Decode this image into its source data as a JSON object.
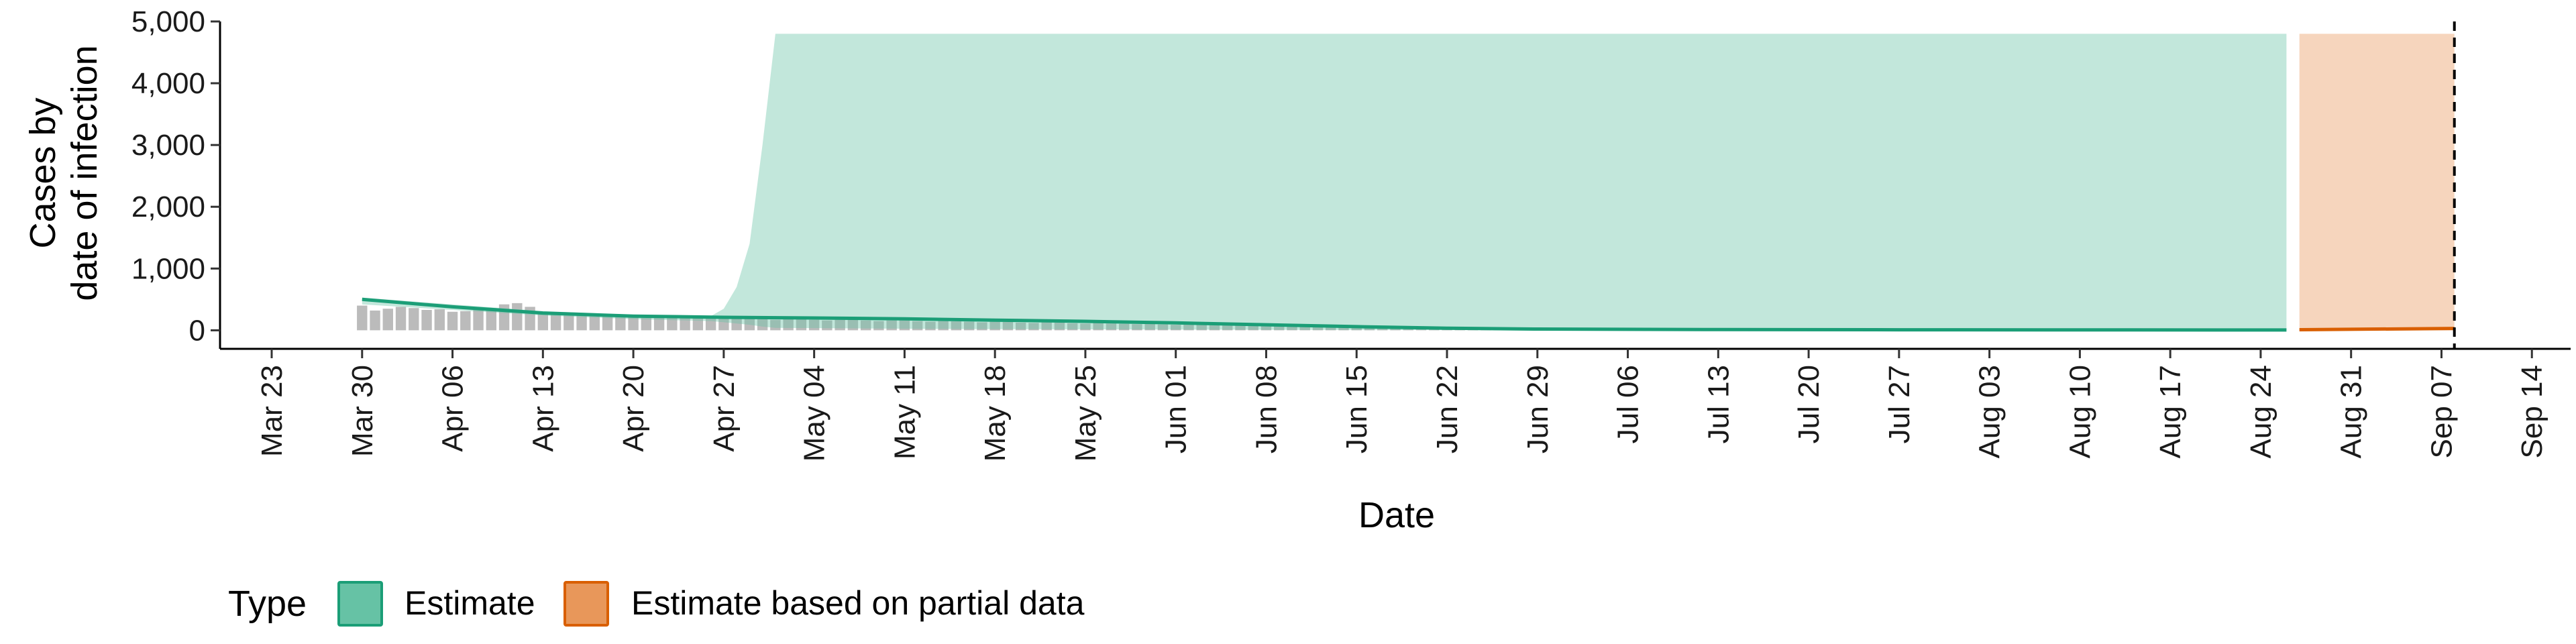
{
  "chart_data": {
    "type": "area",
    "xlabel": "Date",
    "ylabel_line1": "Cases by",
    "ylabel_line2": "date of infection",
    "x_range": [
      "2020-03-19",
      "2020-09-17"
    ],
    "ylim": [
      -300,
      5000
    ],
    "y_ticks": [
      {
        "value": 0,
        "label": "0"
      },
      {
        "value": 1000,
        "label": "1,000"
      },
      {
        "value": 2000,
        "label": "2,000"
      },
      {
        "value": 3000,
        "label": "3,000"
      },
      {
        "value": 4000,
        "label": "4,000"
      },
      {
        "value": 5000,
        "label": "5,000"
      }
    ],
    "x_ticks": [
      {
        "date": "2020-03-23",
        "label": "Mar 23"
      },
      {
        "date": "2020-03-30",
        "label": "Mar 30"
      },
      {
        "date": "2020-04-06",
        "label": "Apr 06"
      },
      {
        "date": "2020-04-13",
        "label": "Apr 13"
      },
      {
        "date": "2020-04-20",
        "label": "Apr 20"
      },
      {
        "date": "2020-04-27",
        "label": "Apr 27"
      },
      {
        "date": "2020-05-04",
        "label": "May 04"
      },
      {
        "date": "2020-05-11",
        "label": "May 11"
      },
      {
        "date": "2020-05-18",
        "label": "May 18"
      },
      {
        "date": "2020-05-25",
        "label": "May 25"
      },
      {
        "date": "2020-06-01",
        "label": "Jun 01"
      },
      {
        "date": "2020-06-08",
        "label": "Jun 08"
      },
      {
        "date": "2020-06-15",
        "label": "Jun 15"
      },
      {
        "date": "2020-06-22",
        "label": "Jun 22"
      },
      {
        "date": "2020-06-29",
        "label": "Jun 29"
      },
      {
        "date": "2020-07-06",
        "label": "Jul 06"
      },
      {
        "date": "2020-07-13",
        "label": "Jul 13"
      },
      {
        "date": "2020-07-20",
        "label": "Jul 20"
      },
      {
        "date": "2020-07-27",
        "label": "Jul 27"
      },
      {
        "date": "2020-08-03",
        "label": "Aug 03"
      },
      {
        "date": "2020-08-10",
        "label": "Aug 10"
      },
      {
        "date": "2020-08-17",
        "label": "Aug 17"
      },
      {
        "date": "2020-08-24",
        "label": "Aug 24"
      },
      {
        "date": "2020-08-31",
        "label": "Aug 31"
      },
      {
        "date": "2020-09-07",
        "label": "Sep 07"
      },
      {
        "date": "2020-09-14",
        "label": "Sep 14"
      }
    ],
    "vline_date": "2020-09-08",
    "legend": {
      "title": "Type",
      "position": "bottom",
      "items": [
        {
          "label": "Estimate",
          "fill": "#66c2a5",
          "stroke": "#1b9e77"
        },
        {
          "label": "Estimate based on partial data",
          "fill": "#e8975a",
          "stroke": "#d95f02"
        }
      ]
    },
    "series": [
      {
        "name": "Estimate",
        "color": "#1b9e77",
        "fill": "#66c2a5",
        "fill_opacity": 0.4,
        "ribbon": [
          {
            "date": "2020-03-30",
            "lower": 420,
            "upper": 530
          },
          {
            "date": "2020-04-06",
            "lower": 330,
            "upper": 420
          },
          {
            "date": "2020-04-13",
            "lower": 240,
            "upper": 310
          },
          {
            "date": "2020-04-20",
            "lower": 180,
            "upper": 250
          },
          {
            "date": "2020-04-26",
            "lower": 150,
            "upper": 230
          },
          {
            "date": "2020-04-27",
            "lower": 130,
            "upper": 350
          },
          {
            "date": "2020-04-28",
            "lower": 110,
            "upper": 700
          },
          {
            "date": "2020-04-29",
            "lower": 90,
            "upper": 1400
          },
          {
            "date": "2020-04-30",
            "lower": 60,
            "upper": 3000
          },
          {
            "date": "2020-05-01",
            "lower": 40,
            "upper": 4800
          },
          {
            "date": "2020-05-15",
            "lower": 20,
            "upper": 4800
          },
          {
            "date": "2020-06-15",
            "lower": 5,
            "upper": 4800
          },
          {
            "date": "2020-07-15",
            "lower": 0,
            "upper": 4800
          },
          {
            "date": "2020-08-26",
            "lower": 0,
            "upper": 4800
          }
        ],
        "median": [
          {
            "date": "2020-03-30",
            "value": 500
          },
          {
            "date": "2020-04-06",
            "value": 380
          },
          {
            "date": "2020-04-13",
            "value": 280
          },
          {
            "date": "2020-04-20",
            "value": 230
          },
          {
            "date": "2020-04-27",
            "value": 210
          },
          {
            "date": "2020-05-04",
            "value": 200
          },
          {
            "date": "2020-05-11",
            "value": 185
          },
          {
            "date": "2020-05-18",
            "value": 165
          },
          {
            "date": "2020-05-25",
            "value": 145
          },
          {
            "date": "2020-06-01",
            "value": 120
          },
          {
            "date": "2020-06-08",
            "value": 90
          },
          {
            "date": "2020-06-15",
            "value": 60
          },
          {
            "date": "2020-06-22",
            "value": 35
          },
          {
            "date": "2020-06-29",
            "value": 20
          },
          {
            "date": "2020-07-13",
            "value": 12
          },
          {
            "date": "2020-07-27",
            "value": 8
          },
          {
            "date": "2020-08-26",
            "value": 5
          }
        ]
      },
      {
        "name": "Estimate based on partial data",
        "color": "#d95f02",
        "fill": "#e8975a",
        "fill_opacity": 0.4,
        "ribbon": [
          {
            "date": "2020-08-27",
            "lower": 0,
            "upper": 4800
          },
          {
            "date": "2020-09-08",
            "lower": 0,
            "upper": 4800
          }
        ],
        "median": [
          {
            "date": "2020-08-27",
            "value": 10
          },
          {
            "date": "2020-09-08",
            "value": 30
          }
        ]
      }
    ],
    "reported_cases": {
      "color": "#9e9e9e",
      "start_date": "2020-03-30",
      "values": [
        400,
        320,
        350,
        380,
        360,
        330,
        340,
        300,
        310,
        330,
        360,
        420,
        440,
        380,
        300,
        260,
        270,
        250,
        230,
        240,
        250,
        220,
        200,
        210,
        230,
        220,
        200,
        190,
        200,
        210,
        190,
        180,
        170,
        180,
        190,
        170,
        160,
        170,
        180,
        160,
        150,
        160,
        170,
        150,
        140,
        150,
        145,
        140,
        130,
        140,
        135,
        125,
        120,
        130,
        125,
        115,
        110,
        120,
        110,
        105,
        100,
        105,
        95,
        90,
        95,
        90,
        85,
        80,
        85,
        75,
        70,
        75,
        70,
        65,
        60,
        60,
        55,
        50,
        50,
        45,
        40,
        40,
        35,
        35,
        30,
        30,
        28,
        25,
        25,
        22,
        20,
        20,
        18,
        16,
        15
      ]
    }
  }
}
